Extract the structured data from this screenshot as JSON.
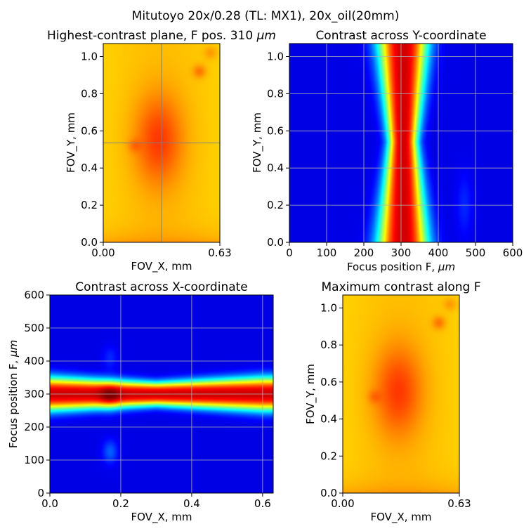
{
  "figure": {
    "suptitle": "Mitutoyo 20x/0.28 (TL: MX1), 20x_oil(20mm)"
  },
  "colormap": [
    "#00007f",
    "#0000ff",
    "#007fff",
    "#00ffff",
    "#7fff7f",
    "#ffff00",
    "#ff7f00",
    "#ff0000",
    "#7f0000"
  ],
  "chart_data": [
    {
      "id": "plane",
      "type": "heatmap",
      "title_prefix": "Highest-contrast plane, F pos. 310 ",
      "title_unit": "μm",
      "xlabel": "FOV_X, mm",
      "ylabel": "FOV_Y, mm",
      "xlim": [
        0,
        0.63
      ],
      "ylim": [
        0,
        1.07
      ],
      "xticks": [
        0.0,
        0.63
      ],
      "xtick_labels": [
        "0.00",
        "0.63"
      ],
      "yticks": [
        0.0,
        0.2,
        0.4,
        0.6,
        0.8,
        1.0
      ],
      "ytick_labels": [
        "0.0",
        "0.2",
        "0.4",
        "0.6",
        "0.8",
        "1.0"
      ],
      "crosshair": {
        "x": 0.315,
        "y": 0.535
      },
      "grid": false,
      "peak": {
        "x": 0.3,
        "y": 0.55
      },
      "spots": [
        {
          "x": 0.52,
          "y": 0.92
        },
        {
          "x": 0.58,
          "y": 1.02
        },
        {
          "x": 0.17,
          "y": 0.52
        }
      ]
    },
    {
      "id": "ycross",
      "type": "heatmap",
      "title": "Contrast across Y-coordinate",
      "xlabel_prefix": "Focus position F, ",
      "xlabel_unit": "μm",
      "ylabel": "FOV_Y, mm",
      "xlim": [
        0,
        600
      ],
      "ylim": [
        0,
        1.07
      ],
      "xticks": [
        0,
        100,
        200,
        300,
        400,
        500,
        600
      ],
      "xtick_labels": [
        "0",
        "100",
        "200",
        "300",
        "400",
        "500",
        "600"
      ],
      "yticks": [
        0.0,
        0.2,
        0.4,
        0.6,
        0.8,
        1.0
      ],
      "ytick_labels": [
        "0.0",
        "0.2",
        "0.4",
        "0.6",
        "0.8",
        "1.0"
      ],
      "grid": true,
      "focus_center": 305
    },
    {
      "id": "xcross",
      "type": "heatmap",
      "title": "Contrast across X-coordinate",
      "xlabel": "FOV_X, mm",
      "ylabel_prefix": "Focus position F, ",
      "ylabel_unit": "μm",
      "xlim": [
        0,
        0.63
      ],
      "ylim": [
        0,
        600
      ],
      "xticks": [
        0.0,
        0.2,
        0.4,
        0.6
      ],
      "xtick_labels": [
        "0.0",
        "0.2",
        "0.4",
        "0.6"
      ],
      "yticks": [
        0,
        100,
        200,
        300,
        400,
        500,
        600
      ],
      "ytick_labels": [
        "0",
        "100",
        "200",
        "300",
        "400",
        "500",
        "600"
      ],
      "grid": true,
      "focus_center": 300
    },
    {
      "id": "maxc",
      "type": "heatmap",
      "title": "Maximum contrast along F",
      "xlabel": "FOV_X, mm",
      "ylabel": "FOV_Y, mm",
      "xlim": [
        0,
        0.63
      ],
      "ylim": [
        0,
        1.07
      ],
      "xticks": [
        0.0,
        0.63
      ],
      "xtick_labels": [
        "0.00",
        "0.63"
      ],
      "yticks": [
        0.0,
        0.2,
        0.4,
        0.6,
        0.8,
        1.0
      ],
      "ytick_labels": [
        "0.0",
        "0.2",
        "0.4",
        "0.6",
        "0.8",
        "1.0"
      ],
      "grid": false,
      "peak": {
        "x": 0.3,
        "y": 0.55
      },
      "spots": [
        {
          "x": 0.52,
          "y": 0.92
        },
        {
          "x": 0.58,
          "y": 1.02
        },
        {
          "x": 0.17,
          "y": 0.52
        }
      ]
    }
  ]
}
